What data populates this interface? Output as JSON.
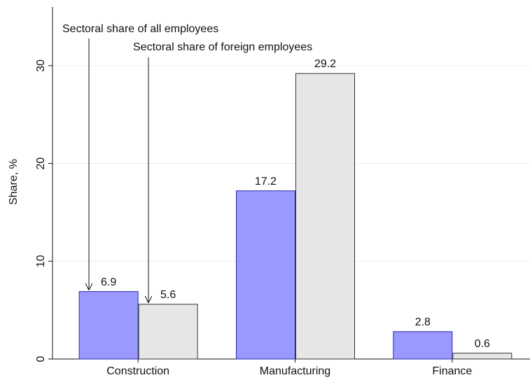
{
  "chart_data": {
    "type": "bar",
    "y_label": "Share, %",
    "categories": [
      "Construction",
      "Manufacturing",
      "Finance"
    ],
    "series": [
      {
        "name": "Sectoral share of all employees",
        "color": "#9999ff",
        "values": [
          6.9,
          17.2,
          2.8
        ]
      },
      {
        "name": "Sectoral share of foreign employees",
        "color": "#e6e6e6",
        "values": [
          5.6,
          29.2,
          0.6
        ]
      }
    ],
    "ylim": [
      0,
      36
    ],
    "yticks": [
      0,
      10,
      20,
      30
    ],
    "grid": true
  }
}
